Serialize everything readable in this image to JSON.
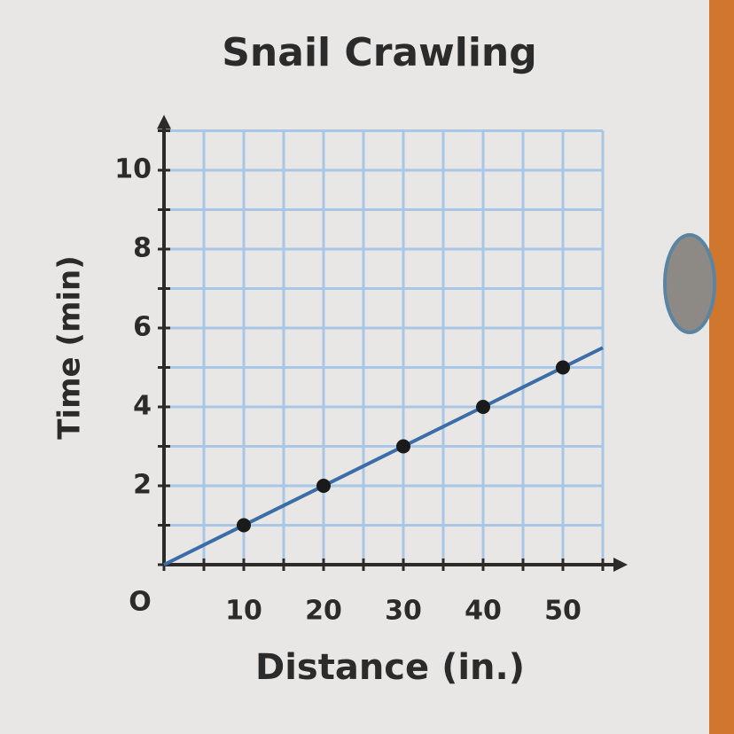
{
  "chart_data": {
    "type": "scatter",
    "title": "Snail Crawling",
    "x_label": "Distance (in.)",
    "y_label": "Time (min)",
    "origin_label": "O",
    "xlim": [
      0,
      55
    ],
    "ylim": [
      0,
      11
    ],
    "xticks": [
      10,
      20,
      30,
      40,
      50
    ],
    "yticks": [
      2,
      4,
      6,
      8,
      10
    ],
    "x_gridlines": [
      0,
      5,
      10,
      15,
      20,
      25,
      30,
      35,
      40,
      45,
      50,
      55
    ],
    "y_gridlines": [
      0,
      1,
      2,
      3,
      4,
      5,
      6,
      7,
      8,
      9,
      10,
      11
    ],
    "grid_color": "#a8c7e6",
    "series": [
      {
        "kind": "line",
        "color": "#3b6ea9",
        "x": [
          0,
          55
        ],
        "values": [
          0,
          5.5
        ]
      },
      {
        "kind": "points",
        "color": "#1a1a1a",
        "x": [
          10,
          20,
          30,
          40,
          50
        ],
        "values": [
          1,
          2,
          3,
          4,
          5
        ]
      }
    ]
  }
}
